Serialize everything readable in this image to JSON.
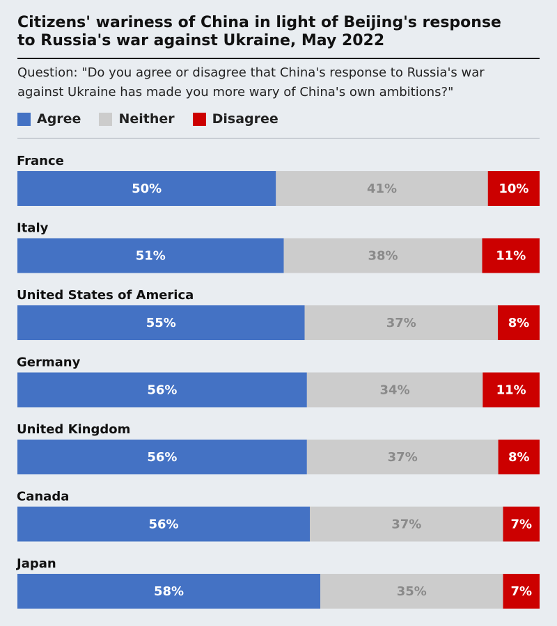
{
  "header": {
    "title_line1": "Citizens' wariness of China in light of Beijing's response",
    "title_line2": "to Russia's war against Ukraine, May 2022",
    "question_line1": "Question: \"Do you agree or disagree that China's response to Russia's war",
    "question_line2": "against Ukraine has made you more wary of China's own ambitions?\""
  },
  "legend": [
    {
      "label": "Agree",
      "color": "#4472c4"
    },
    {
      "label": "Neither",
      "color": "#cccccc"
    },
    {
      "label": "Disagree",
      "color": "#cc0000"
    }
  ],
  "chart_data": {
    "type": "bar",
    "orientation": "horizontal-stacked-100",
    "categories": [
      "France",
      "Italy",
      "United States of America",
      "Germany",
      "United Kingdom",
      "Canada",
      "Japan"
    ],
    "series": [
      {
        "name": "Agree",
        "color": "#4472c4",
        "label_color": "#ffffff",
        "values": [
          50,
          51,
          55,
          56,
          56,
          56,
          58
        ]
      },
      {
        "name": "Neither",
        "color": "#cccccc",
        "label_color": "#8a8a8a",
        "values": [
          41,
          38,
          37,
          34,
          37,
          37,
          35
        ]
      },
      {
        "name": "Disagree",
        "color": "#cc0000",
        "label_color": "#ffffff",
        "values": [
          10,
          11,
          8,
          11,
          8,
          7,
          7
        ]
      }
    ],
    "value_suffix": "%",
    "legend_position": "top-left",
    "grid": false
  }
}
